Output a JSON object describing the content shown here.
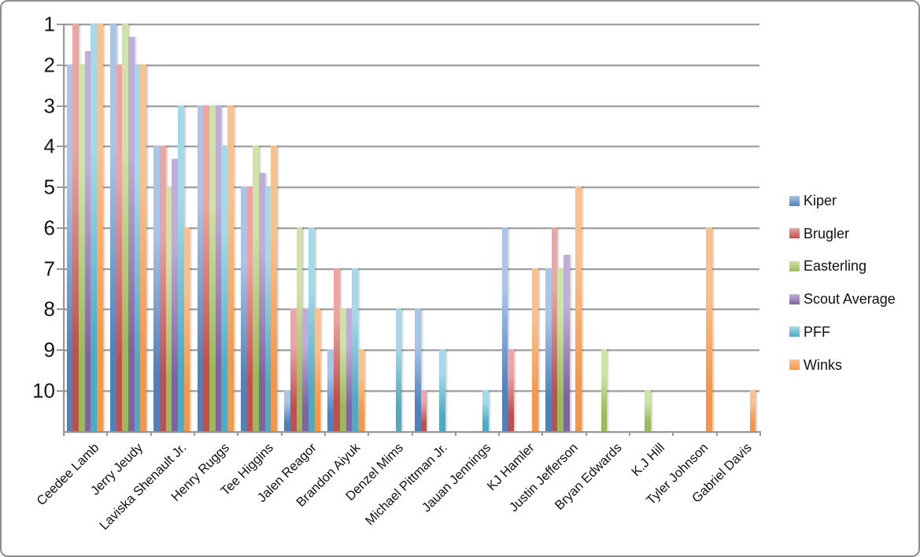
{
  "window": {
    "background": "#ffffff",
    "border_color": "#8e8e8e"
  },
  "colors": {
    "axis": "#9a9a9a",
    "gridline": "#a2a2a2",
    "text": "#111111"
  },
  "chart_data": {
    "type": "bar",
    "title": "",
    "xlabel": "",
    "ylabel": "",
    "grid": true,
    "legend_position": "right",
    "y_axis": {
      "ticks": [
        1,
        2,
        3,
        4,
        5,
        6,
        7,
        8,
        9,
        10
      ],
      "inverted": true,
      "baseline_rank": 11,
      "note": "rank scale: 1 best at top; bars rise from baseline toward rank value"
    },
    "categories": [
      "Ceedee Lamb",
      "Jerry Jeudy",
      "Laviska Shenault Jr.",
      "Henry Ruggs",
      "Tee Higgins",
      "Jalen Reagor",
      "Brandon Aiyuk",
      "Denzel Mims",
      "Michael Pittman Jr.",
      "Jauan Jennings",
      "KJ Hamler",
      "Justin Jefferson",
      "Bryan Edwards",
      "K.J Hill",
      "Tyler Johnson",
      "Gabriel Davis"
    ],
    "series": [
      {
        "name": "Kiper",
        "color": "#4F81BD",
        "light": "#A9C6E8",
        "values": [
          2,
          1,
          4,
          3,
          5,
          10,
          9,
          null,
          8,
          null,
          6,
          7,
          null,
          null,
          null,
          null
        ]
      },
      {
        "name": "Brugler",
        "color": "#C0504D",
        "light": "#ECA5A3",
        "values": [
          1,
          2,
          4,
          3,
          5,
          8,
          7,
          null,
          10,
          null,
          9,
          6,
          null,
          null,
          null,
          null
        ]
      },
      {
        "name": "Easterling",
        "color": "#9BBB59",
        "light": "#CFE3A6",
        "values": [
          2,
          1,
          5,
          3,
          4,
          6,
          8,
          null,
          null,
          null,
          null,
          7,
          9,
          10,
          null,
          null
        ]
      },
      {
        "name": "Scout Average",
        "color": "#8064A2",
        "light": "#BFAED7",
        "values": [
          1.67,
          1.33,
          4.33,
          3,
          4.67,
          8,
          8,
          null,
          null,
          null,
          null,
          6.67,
          null,
          null,
          null,
          null
        ]
      },
      {
        "name": "PFF",
        "color": "#4BACC6",
        "light": "#A3DAEB",
        "values": [
          1,
          2,
          3,
          4,
          5,
          6,
          7,
          8,
          9,
          10,
          null,
          null,
          null,
          null,
          null,
          null
        ]
      },
      {
        "name": "Winks",
        "color": "#F79646",
        "light": "#FBC18C",
        "values": [
          1,
          2,
          6,
          3,
          4,
          8,
          9,
          null,
          null,
          null,
          7,
          5,
          null,
          null,
          6,
          10
        ]
      }
    ]
  }
}
